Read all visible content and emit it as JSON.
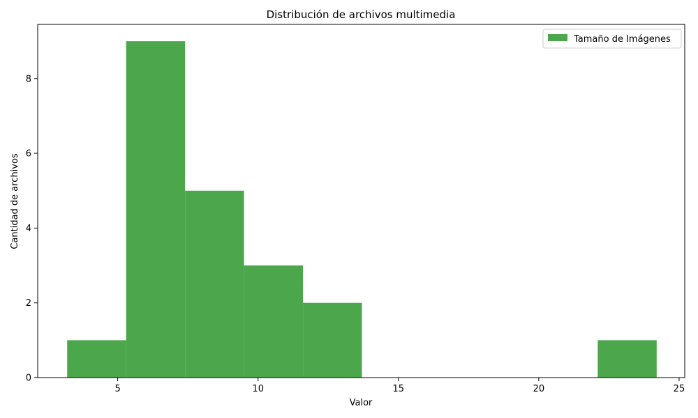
{
  "chart_data": {
    "type": "bar",
    "subtype": "histogram",
    "title": "Distribución de archivos multimedia",
    "xlabel": "Valor",
    "ylabel": "Cantidad de archivos",
    "xlim": [
      2.15,
      25.2
    ],
    "ylim": [
      0,
      9.45
    ],
    "xticks": [
      5,
      10,
      15,
      20,
      25
    ],
    "yticks": [
      0,
      2,
      4,
      6,
      8
    ],
    "grid": false,
    "legend_position": "top-right",
    "series": [
      {
        "name": "Tamaño de Imágenes",
        "color": "#4ca64c",
        "bins": [
          {
            "x0": 3.2,
            "x1": 5.3,
            "count": 1
          },
          {
            "x0": 5.3,
            "x1": 7.4,
            "count": 9
          },
          {
            "x0": 7.4,
            "x1": 9.5,
            "count": 5
          },
          {
            "x0": 9.5,
            "x1": 11.6,
            "count": 3
          },
          {
            "x0": 11.6,
            "x1": 13.7,
            "count": 2
          },
          {
            "x0": 13.7,
            "x1": 15.8,
            "count": 0
          },
          {
            "x0": 15.8,
            "x1": 17.9,
            "count": 0
          },
          {
            "x0": 17.9,
            "x1": 20.0,
            "count": 0
          },
          {
            "x0": 20.0,
            "x1": 22.1,
            "count": 0
          },
          {
            "x0": 22.1,
            "x1": 24.2,
            "count": 1
          }
        ]
      }
    ]
  }
}
